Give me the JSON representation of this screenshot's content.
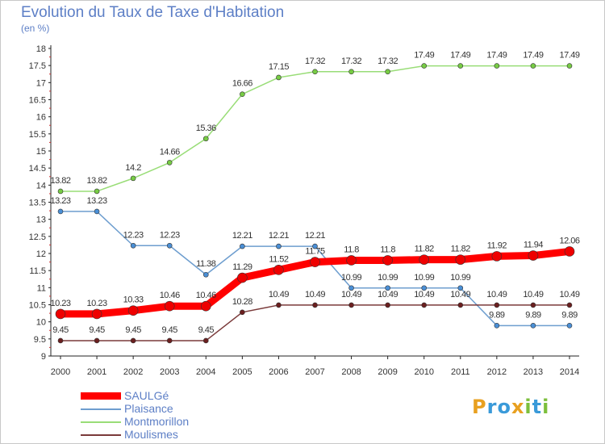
{
  "title": "Evolution du Taux de Taxe d'Habitation",
  "unit_label": "(en %)",
  "logo": {
    "letters": [
      "P",
      "r",
      "o",
      "x",
      "i",
      "t",
      "i"
    ],
    "colors": [
      "#e8a020",
      "#3a9ad9",
      "#3a9ad9",
      "#e8a020",
      "#7cbf3c",
      "#3a9ad9",
      "#7cbf3c"
    ]
  },
  "chart_data": {
    "type": "line",
    "title": "Evolution du Taux de Taxe d'Habitation",
    "ylabel": "(en %)",
    "xlabel": "",
    "ylim": [
      9,
      18
    ],
    "yticks": [
      "9",
      "9.5",
      "10",
      "10.5",
      "11",
      "11.5",
      "12",
      "12.5",
      "13",
      "13.5",
      "14",
      "14.5",
      "15",
      "15.5",
      "16",
      "16.5",
      "17",
      "17.5",
      "18"
    ],
    "x": [
      "2000",
      "2001",
      "2002",
      "2003",
      "2004",
      "2005",
      "2006",
      "2007",
      "2008",
      "2009",
      "2010",
      "2011",
      "2012",
      "2013",
      "2014"
    ],
    "grid": false,
    "legend_position": "bottom-left",
    "series": [
      {
        "name": "Montmorillon",
        "color": "#99dd77",
        "point_color": "#77cc44",
        "width": 1.5,
        "point_r": 3,
        "values": [
          13.82,
          13.82,
          14.2,
          14.66,
          15.36,
          16.66,
          17.15,
          17.32,
          17.32,
          17.32,
          17.49,
          17.49,
          17.49,
          17.49,
          17.49
        ],
        "labels": [
          "13.82",
          "13.82",
          "14.2",
          "14.66",
          "15.36",
          "16.66",
          "17.15",
          "17.32",
          "17.32",
          "17.32",
          "17.49",
          "17.49",
          "17.49",
          "17.49",
          "17.49"
        ]
      },
      {
        "name": "Plaisance",
        "color": "#6e9ecf",
        "point_color": "#4a8fd6",
        "width": 1.5,
        "point_r": 3,
        "values": [
          13.23,
          13.23,
          12.23,
          12.23,
          11.38,
          12.21,
          12.21,
          12.21,
          10.99,
          10.99,
          10.99,
          10.99,
          9.89,
          9.89,
          9.89
        ],
        "labels": [
          "13.23",
          "13.23",
          "12.23",
          "12.23",
          "11.38",
          "12.21",
          "12.21",
          "12.21",
          "10.99",
          "10.99",
          "10.99",
          "10.99",
          "9.89",
          "9.89",
          "9.89"
        ]
      },
      {
        "name": "Moulismes",
        "color": "#7a3a3a",
        "point_color": "#6b1f1f",
        "width": 1.5,
        "point_r": 3,
        "values": [
          9.45,
          9.45,
          9.45,
          9.45,
          9.45,
          10.28,
          10.49,
          10.49,
          10.49,
          10.49,
          10.49,
          10.49,
          10.49,
          10.49,
          10.49
        ],
        "labels": [
          "9.45",
          "9.45",
          "9.45",
          "9.45",
          "9.45",
          "10.28",
          "10.49",
          "10.49",
          "10.49",
          "10.49",
          "10.49",
          "10.49",
          "10.49",
          "10.49",
          "10.49"
        ]
      },
      {
        "name": "SAULGé",
        "color": "#ff0000",
        "point_color": "#ee0000",
        "width": 9,
        "point_r": 6,
        "values": [
          10.23,
          10.23,
          10.33,
          10.46,
          10.46,
          11.29,
          11.52,
          11.75,
          11.8,
          11.8,
          11.82,
          11.82,
          11.92,
          11.94,
          12.06
        ],
        "labels": [
          "10.23",
          "10.23",
          "10.33",
          "10.46",
          "10.46",
          "11.29",
          "11.52",
          "11.75",
          "11.8",
          "11.8",
          "11.82",
          "11.82",
          "11.92",
          "11.94",
          "12.06"
        ]
      }
    ],
    "legend": [
      {
        "name": "SAULGé",
        "color": "#ff0000",
        "thick": true
      },
      {
        "name": "Plaisance",
        "color": "#6e9ecf",
        "thick": false
      },
      {
        "name": "Montmorillon",
        "color": "#99dd77",
        "thick": false
      },
      {
        "name": "Moulismes",
        "color": "#7a3a3a",
        "thick": false
      }
    ]
  }
}
